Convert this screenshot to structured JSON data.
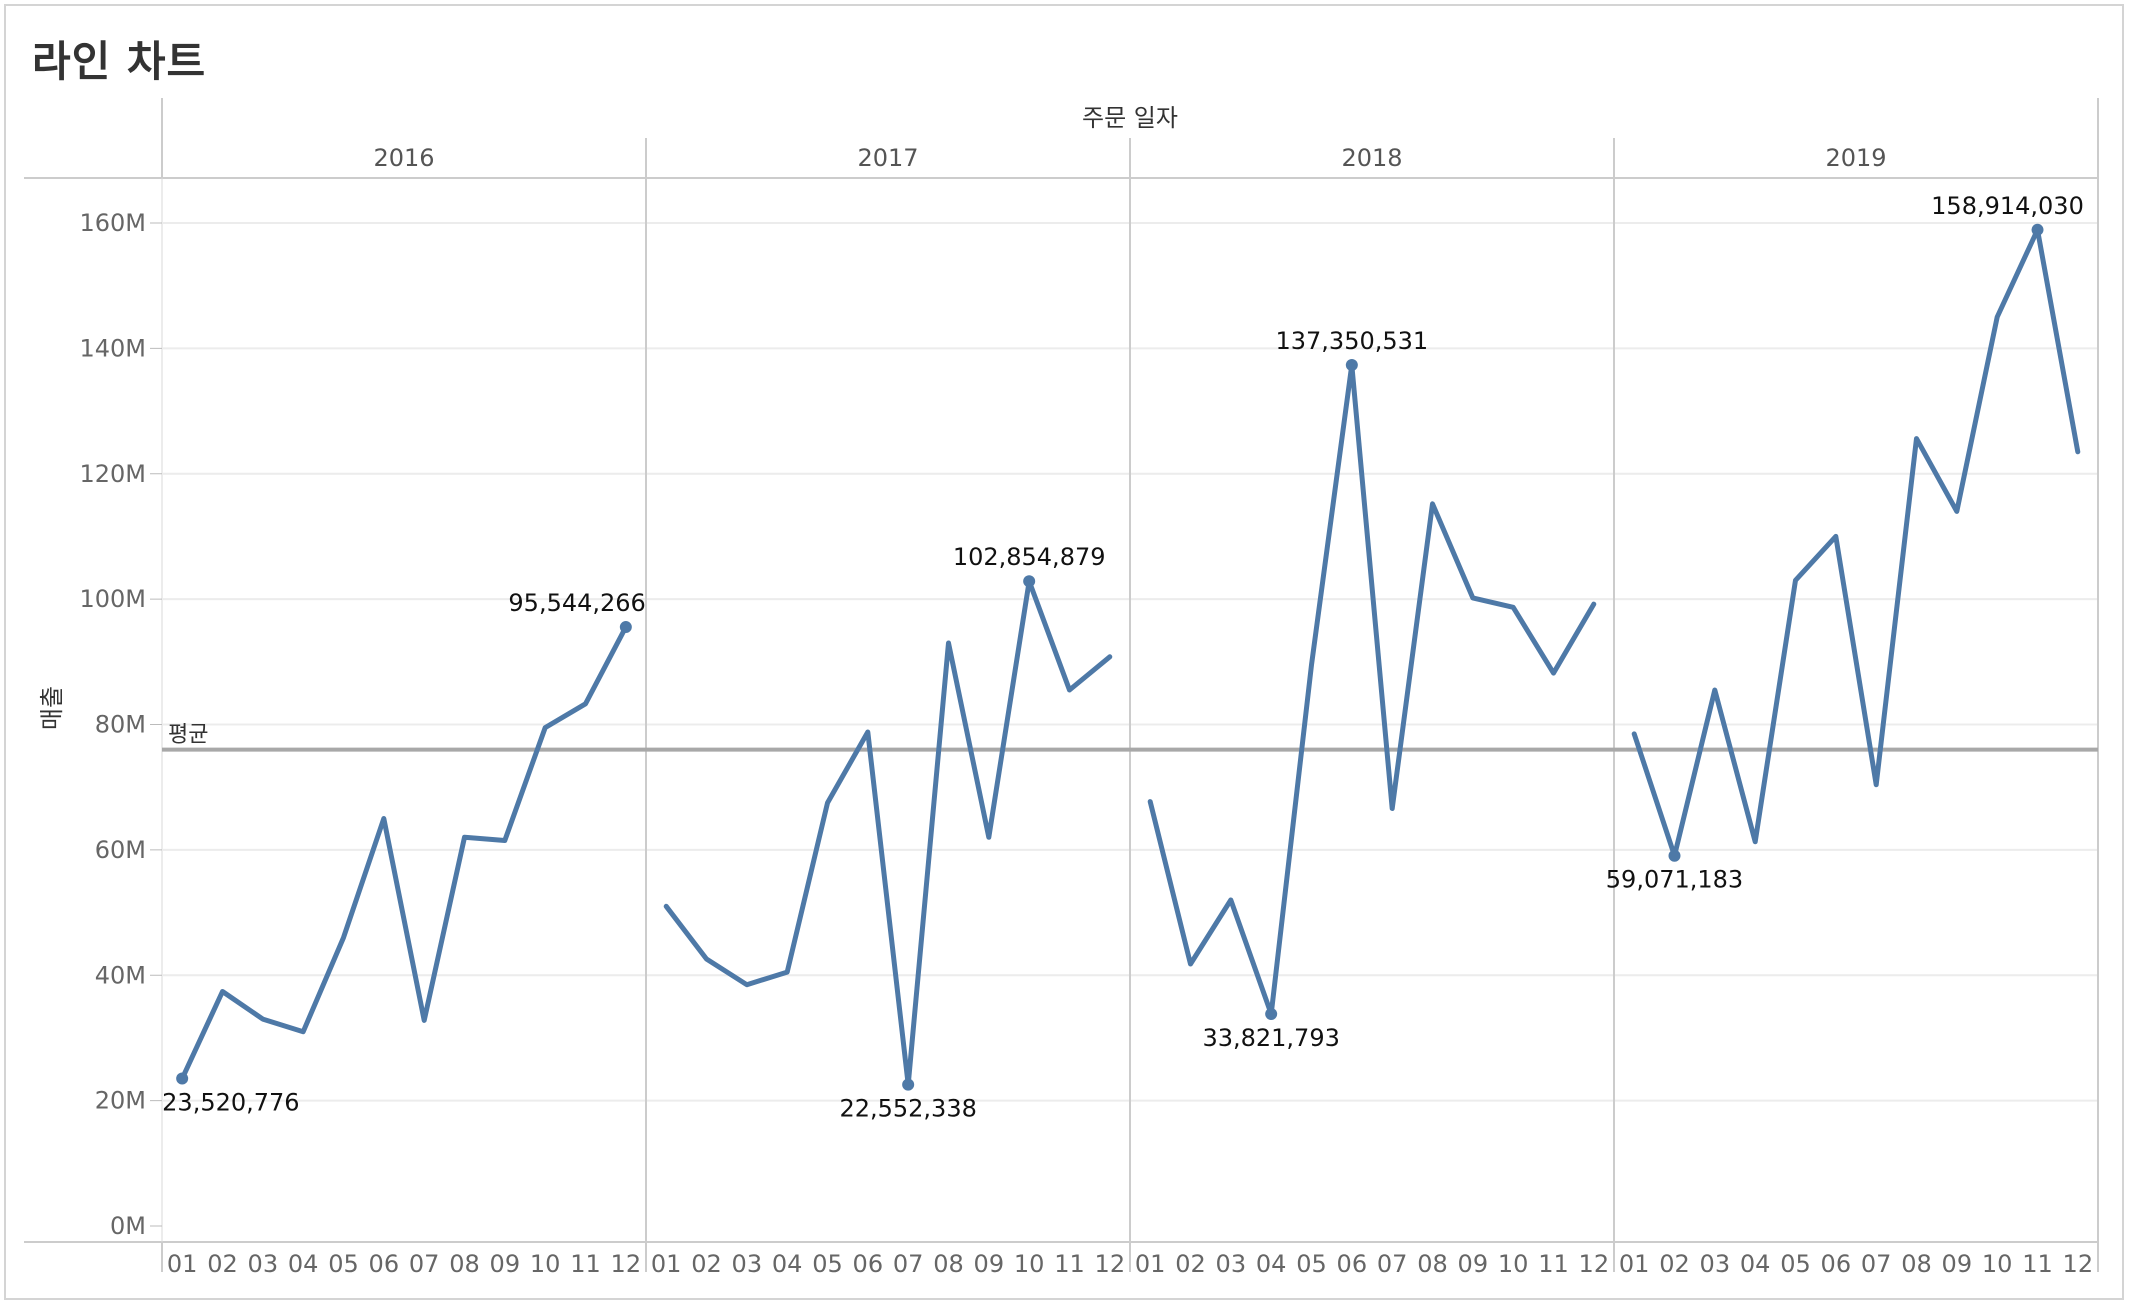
{
  "title": "라인 차트",
  "chart_data": {
    "type": "line",
    "column_header": "주문 일자",
    "ylabel": "매출",
    "ylim": [
      0,
      165000000
    ],
    "y_ticks": [
      {
        "value": 0,
        "label": "0M"
      },
      {
        "value": 20000000,
        "label": "20M"
      },
      {
        "value": 40000000,
        "label": "40M"
      },
      {
        "value": 60000000,
        "label": "60M"
      },
      {
        "value": 80000000,
        "label": "80M"
      },
      {
        "value": 100000000,
        "label": "100M"
      },
      {
        "value": 120000000,
        "label": "120M"
      },
      {
        "value": 140000000,
        "label": "140M"
      },
      {
        "value": 160000000,
        "label": "160M"
      }
    ],
    "months": [
      "01",
      "02",
      "03",
      "04",
      "05",
      "06",
      "07",
      "08",
      "09",
      "10",
      "11",
      "12"
    ],
    "reference_line": {
      "label": "평균",
      "value": 76000000
    },
    "line_color": "#4e79a7",
    "panels": [
      {
        "year": "2016",
        "values": [
          23520776,
          37400000,
          33000000,
          31000000,
          46000000,
          65000000,
          32800000,
          62000000,
          61500000,
          79500000,
          83300000,
          95544266
        ],
        "labels": [
          {
            "month_index": 0,
            "text": "23,520,776",
            "position": "below"
          },
          {
            "month_index": 11,
            "text": "95,544,266",
            "position": "above"
          }
        ]
      },
      {
        "year": "2017",
        "values": [
          51000000,
          42600000,
          38500000,
          40500000,
          67500000,
          78800000,
          22552338,
          93000000,
          62000000,
          102854879,
          85500000,
          90800000
        ],
        "labels": [
          {
            "month_index": 6,
            "text": "22,552,338",
            "position": "below"
          },
          {
            "month_index": 9,
            "text": "102,854,879",
            "position": "above"
          }
        ]
      },
      {
        "year": "2018",
        "values": [
          67700000,
          41800000,
          52000000,
          33821793,
          89500000,
          137350531,
          66600000,
          115200000,
          100200000,
          98700000,
          88200000,
          99200000
        ],
        "labels": [
          {
            "month_index": 3,
            "text": "33,821,793",
            "position": "below"
          },
          {
            "month_index": 5,
            "text": "137,350,531",
            "position": "above"
          }
        ]
      },
      {
        "year": "2019",
        "values": [
          78500000,
          59071183,
          85500000,
          61300000,
          103000000,
          110000000,
          70400000,
          125600000,
          114000000,
          145000000,
          158914030,
          123500000
        ],
        "labels": [
          {
            "month_index": 1,
            "text": "59,071,183",
            "position": "below"
          },
          {
            "month_index": 10,
            "text": "158,914,030",
            "position": "above"
          }
        ]
      }
    ]
  }
}
